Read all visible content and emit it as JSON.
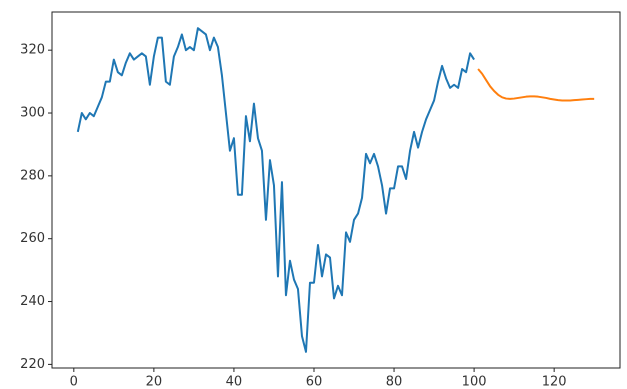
{
  "chart_data": {
    "type": "line",
    "series": [
      {
        "color": "#1f77b4",
        "x": [
          1,
          2,
          3,
          4,
          5,
          6,
          7,
          8,
          9,
          10,
          11,
          12,
          13,
          14,
          15,
          16,
          17,
          18,
          19,
          20,
          21,
          22,
          23,
          24,
          25,
          26,
          27,
          28,
          29,
          30,
          31,
          32,
          33,
          34,
          35,
          36,
          37,
          38,
          39,
          40,
          41,
          42,
          43,
          44,
          45,
          46,
          47,
          48,
          49,
          50,
          51,
          52,
          53,
          54,
          55,
          56,
          57,
          58,
          59,
          60,
          61,
          62,
          63,
          64,
          65,
          66,
          67,
          68,
          69,
          70,
          71,
          72,
          73,
          74,
          75,
          76,
          77,
          78,
          79,
          80,
          81,
          82,
          83,
          84,
          85,
          86,
          87,
          88,
          89,
          90,
          91,
          92,
          93,
          94,
          95,
          96,
          97,
          98,
          99,
          100
        ],
        "values": [
          294,
          300,
          298,
          300,
          299,
          302,
          305,
          310,
          310,
          317,
          313,
          312,
          316,
          319,
          317,
          318,
          319,
          318,
          309,
          318,
          324,
          324,
          310,
          309,
          318,
          321,
          325,
          320,
          321,
          320,
          327,
          326,
          325,
          320,
          324,
          321,
          312,
          300,
          288,
          292,
          274,
          274,
          299,
          291,
          303,
          292,
          288,
          266,
          285,
          277,
          248,
          278,
          242,
          253,
          247,
          244,
          229,
          224,
          246,
          246,
          258,
          248,
          255,
          254,
          241,
          245,
          242,
          262,
          259,
          266,
          268,
          273,
          287,
          284,
          287,
          283,
          277,
          268,
          276,
          276,
          283,
          283,
          279,
          288,
          294,
          289,
          294,
          298,
          301,
          304,
          310,
          315,
          311,
          308,
          309,
          308,
          314,
          313,
          319,
          317
        ]
      },
      {
        "color": "#ff7f0e",
        "x": [
          101,
          102,
          103,
          104,
          105,
          106,
          107,
          108,
          109,
          110,
          111,
          112,
          113,
          114,
          115,
          116,
          117,
          118,
          119,
          120,
          121,
          122,
          123,
          124,
          125,
          126,
          127,
          128,
          129,
          130
        ],
        "values": [
          314,
          312.5,
          310.5,
          308.5,
          307,
          305.8,
          305,
          304.6,
          304.5,
          304.6,
          304.8,
          305,
          305.2,
          305.3,
          305.3,
          305.2,
          305,
          304.8,
          304.5,
          304.3,
          304.1,
          304,
          304,
          304,
          304.1,
          304.2,
          304.3,
          304.4,
          304.5,
          304.5
        ]
      }
    ],
    "xlim": [
      -5.45,
      136.45
    ],
    "xticks": [
      0,
      20,
      40,
      60,
      80,
      100,
      120
    ],
    "ylim": [
      218.85,
      332.15
    ],
    "yticks": [
      220,
      240,
      260,
      280,
      300,
      320
    ]
  }
}
